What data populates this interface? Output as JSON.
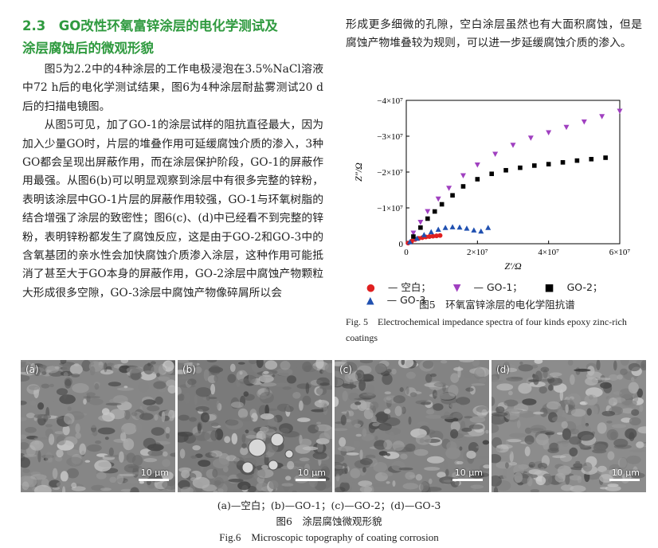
{
  "section": {
    "title_line1": "2.3　GO改性环氧富锌涂层的电化学测试及",
    "title_line2": "涂层腐蚀后的微观形貌"
  },
  "left_paragraphs": [
    "图5为2.2中的4种涂层的工作电极浸泡在3.5%NaCl溶液中72 h后的电化学测试结果，图6为4种涂层耐盐雾测试20 d后的扫描电镜图。",
    "从图5可见，加了GO-1的涂层试样的阻抗直径最大，因为加入少量GO时，片层的堆叠作用可延缓腐蚀介质的渗入，3种GO都会呈现出屏蔽作用，而在涂层保护阶段，GO-1的屏蔽作用最强。从图6(b)可以明显观察到涂层中有很多完整的锌粉，表明该涂层中GO-1片层的屏蔽作用较强，GO-1与环氧树脂的结合增强了涂层的致密性；图6(c)、(d)中已经看不到完整的锌粉，表明锌粉都发生了腐蚀反应，这是由于GO-2和GO-3中的含氧基团的亲水性会加快腐蚀介质渗入涂层，这种作用可能抵消了甚至大于GO本身的屏蔽作用，GO-2涂层中腐蚀产物颗粒大形成很多空隙，GO-3涂层中腐蚀产物像碎屑所以会"
  ],
  "right_paragraph": "形成更多细微的孔隙，空白涂层虽然也有大面积腐蚀，但是腐蚀产物堆叠较为规则，可以进一步延缓腐蚀介质的渗入。",
  "chart_data": {
    "type": "scatter",
    "xlabel": "Z′/Ω",
    "ylabel": "Z″/Ω",
    "xlim": [
      0,
      60000000.0
    ],
    "ylim": [
      0,
      -40000000.0
    ],
    "x_ticks": [
      "0",
      "2×10⁷",
      "4×10⁷",
      "6×10⁷"
    ],
    "y_ticks": [
      "0",
      "−1×10⁷",
      "−2×10⁷",
      "−3×10⁷",
      "−4×10⁷"
    ],
    "series": [
      {
        "name": "空白",
        "marker": "circle",
        "color": "#e02020",
        "x": [
          500000.0,
          1500000.0,
          2500000.0,
          3500000.0,
          4500000.0,
          5500000.0,
          6500000.0,
          7500000.0,
          8500000.0,
          9500000.0
        ],
        "y": [
          -200000.0,
          -700000.0,
          -1200000.0,
          -1500000.0,
          -1700000.0,
          -1900000.0,
          -2000000.0,
          -2100000.0,
          -2200000.0,
          -2300000.0
        ]
      },
      {
        "name": "GO-1",
        "marker": "triangle-down",
        "color": "#a040c0",
        "x": [
          2000000.0,
          4000000.0,
          6000000.0,
          9000000.0,
          12000000.0,
          16000000.0,
          20000000.0,
          25000000.0,
          30000000.0,
          35000000.0,
          40000000.0,
          45000000.0,
          50000000.0,
          55000000.0,
          60000000.0
        ],
        "y": [
          -3000000.0,
          -6000000.0,
          -9000000.0,
          -12500000.0,
          -15500000.0,
          -19000000.0,
          -22000000.0,
          -25000000.0,
          -27500000.0,
          -29500000.0,
          -31000000.0,
          -32500000.0,
          -34000000.0,
          -35500000.0,
          -37000000.0
        ]
      },
      {
        "name": "GO-2",
        "marker": "square",
        "color": "#000000",
        "x": [
          2000000.0,
          4000000.0,
          6000000.0,
          8000000.0,
          10000000.0,
          13000000.0,
          16000000.0,
          20000000.0,
          24000000.0,
          28000000.0,
          32000000.0,
          36000000.0,
          40000000.0,
          44000000.0,
          48000000.0,
          52000000.0,
          56000000.0
        ],
        "y": [
          -2000000.0,
          -4500000.0,
          -7000000.0,
          -9000000.0,
          -11000000.0,
          -13500000.0,
          -16000000.0,
          -18000000.0,
          -19500000.0,
          -20500000.0,
          -21200000.0,
          -21800000.0,
          -22200000.0,
          -22700000.0,
          -23200000.0,
          -23600000.0,
          -24000000.0
        ]
      },
      {
        "name": "GO-3",
        "marker": "triangle-up",
        "color": "#2050b0",
        "x": [
          1000000.0,
          3000000.0,
          5000000.0,
          7000000.0,
          9000000.0,
          11000000.0,
          13000000.0,
          15000000.0,
          17000000.0,
          19000000.0,
          21000000.0,
          23000000.0
        ],
        "y": [
          -500000.0,
          -1500000.0,
          -2500000.0,
          -3300000.0,
          -4000000.0,
          -4500000.0,
          -4700000.0,
          -4600000.0,
          -4300000.0,
          -3800000.0,
          -3500000.0,
          -4500000.0
        ]
      }
    ]
  },
  "figure5": {
    "legend": [
      "— 空白；",
      "— GO-1；",
      "GO-2；",
      "— GO-3"
    ],
    "caption_zh": "图5　环氧富锌涂层的电化学阻抗谱",
    "caption_en": "Fig. 5　Electrochemical impedance spectra of four kinds epoxy zinc-rich coatings"
  },
  "figure6": {
    "panels": [
      {
        "label": "(a)",
        "scale": "10 μm",
        "tone": "#8a8a8a"
      },
      {
        "label": "(b)",
        "scale": "10 μm",
        "tone": "#7a7a7a"
      },
      {
        "label": "(c)",
        "scale": "10 μm",
        "tone": "#858585"
      },
      {
        "label": "(d)",
        "scale": "10 μm",
        "tone": "#8c8c8c"
      }
    ],
    "subcaption": "(a)—空白；(b)—GO-1；(c)—GO-2；(d)—GO-3",
    "caption_zh": "图6　涂层腐蚀微观形貌",
    "caption_en": "Fig.6　Microscopic topography of coating corrosion"
  }
}
